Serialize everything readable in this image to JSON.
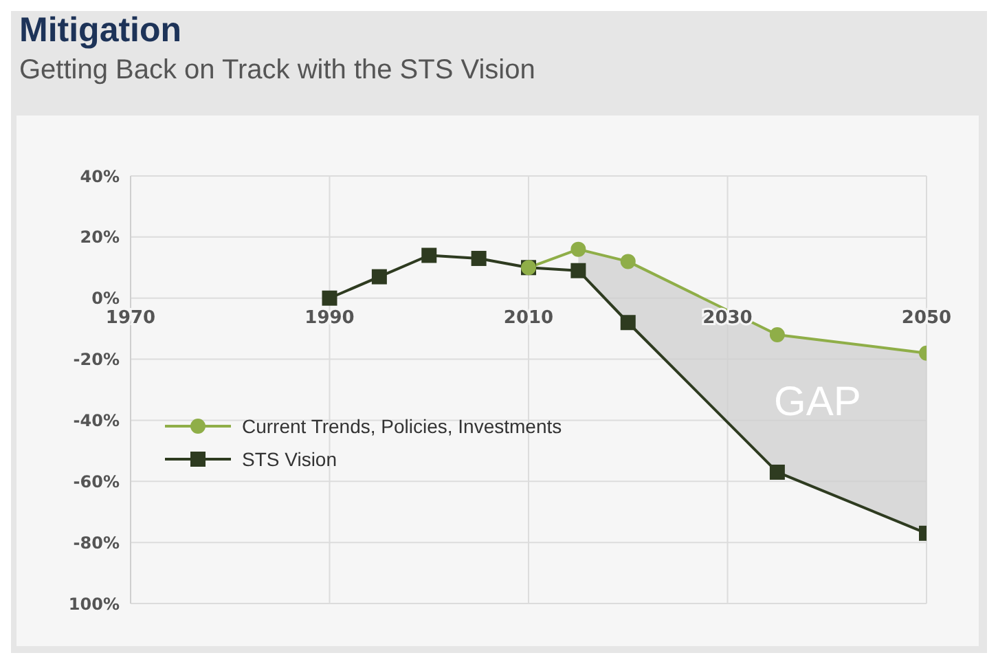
{
  "chart_data": {
    "type": "line",
    "title": "Mitigation",
    "subtitle": "Getting Back on Track with the STS Vision",
    "xlim": [
      1970,
      2050
    ],
    "xticks": [
      1970,
      1990,
      2010,
      2030,
      2050
    ],
    "ylim": [
      -100,
      40
    ],
    "yticks": [
      {
        "value": 40,
        "label": "40%"
      },
      {
        "value": 20,
        "label": "20%"
      },
      {
        "value": 0,
        "label": "0%"
      },
      {
        "value": -20,
        "label": "-20%"
      },
      {
        "value": -40,
        "label": "-40%"
      },
      {
        "value": -60,
        "label": "-60%"
      },
      {
        "value": -80,
        "label": "-80%"
      },
      {
        "value": -100,
        "label": "100%"
      }
    ],
    "grid": true,
    "legend": "left",
    "series": [
      {
        "name": "Current Trends, Policies, Investments",
        "color": "#8fae48",
        "marker": "circle",
        "x": [
          2010,
          2015,
          2020,
          2035,
          2050
        ],
        "values": [
          10,
          16,
          12,
          -12,
          -18
        ],
        "lower": [
          null,
          9,
          -8,
          -57,
          -77
        ],
        "upper": [
          null,
          16,
          12,
          -12,
          -18
        ]
      },
      {
        "name": "STS Vision",
        "color": "#2e3b20",
        "marker": "square",
        "x": [
          1990,
          1995,
          2000,
          2005,
          2010,
          2015,
          2020,
          2035,
          2050
        ],
        "values": [
          0,
          7,
          14,
          13,
          10,
          9,
          -8,
          -57,
          -77
        ]
      }
    ],
    "annotations": [
      "GAP"
    ]
  }
}
